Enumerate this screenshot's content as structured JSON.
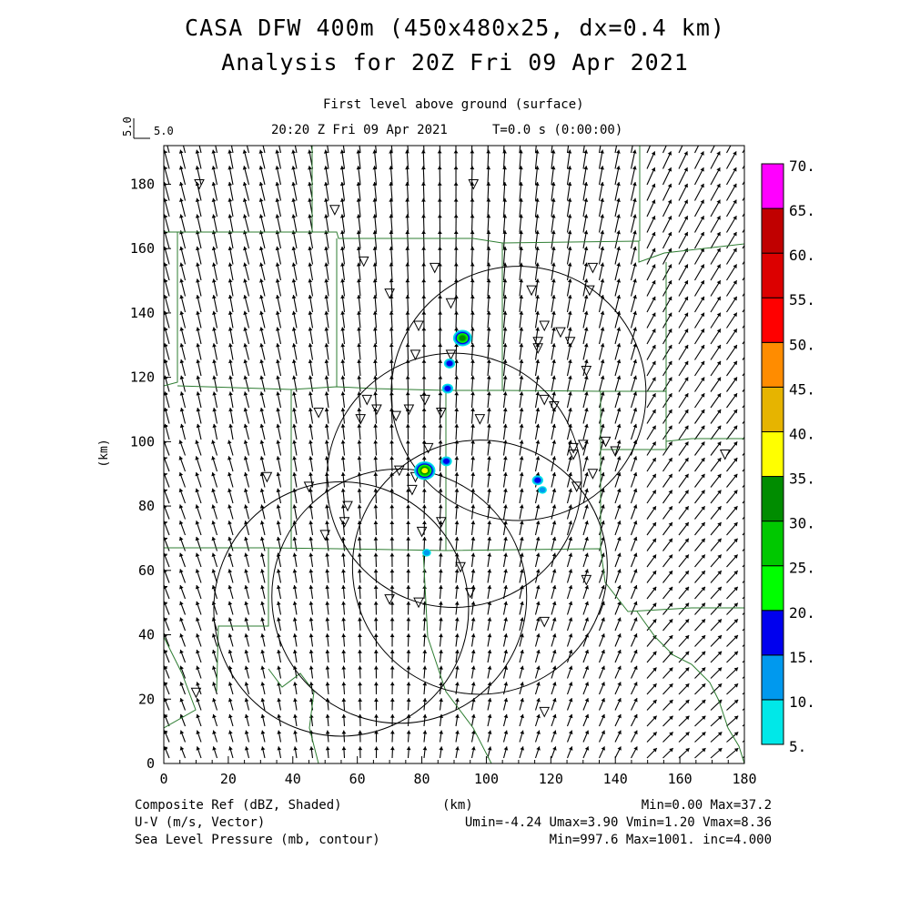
{
  "header": {
    "title": "CASA DFW 400m (450x480x25, dx=0.4 km)",
    "subtitle": "Analysis for 20Z Fri 09 Apr 2021",
    "level": "First level above ground (surface)",
    "valid_time": "20:20 Z Fri 09 Apr 2021",
    "time_step": "T=0.0 s (0:00:00)",
    "vector_scale_label": "5.0"
  },
  "footer": {
    "field1": "Composite Ref (dBZ, Shaded)",
    "field2": "U-V (m/s, Vector)",
    "field3": "Sea Level Pressure (mb, contour)",
    "xunit": "(km)",
    "stats1": "Min=0.00 Max=37.2",
    "stats2": "Umin=-4.24 Umax=3.90 Vmin=1.20 Vmax=8.36",
    "stats3": "Min=997.6 Max=1001. inc=4.000"
  },
  "chart_data": {
    "type": "heatmap",
    "xlabel": "(km)",
    "ylabel": "(km)",
    "xlim": [
      0,
      180
    ],
    "ylim": [
      0,
      192
    ],
    "xticks": [
      "0",
      "20",
      "40",
      "60",
      "80",
      "100",
      "120",
      "140",
      "160",
      "180"
    ],
    "yticks": [
      "0",
      "20",
      "40",
      "60",
      "80",
      "100",
      "120",
      "140",
      "160",
      "180"
    ],
    "colorbar": {
      "levels": [
        "5.",
        "10.",
        "15.",
        "20.",
        "25.",
        "30.",
        "35.",
        "40.",
        "45.",
        "50.",
        "55.",
        "60.",
        "65.",
        "70."
      ],
      "colors": [
        "#00e8e8",
        "#0099ee",
        "#0000ee",
        "#00ff00",
        "#00c800",
        "#008c00",
        "#ffff00",
        "#e6b400",
        "#ff8c00",
        "#ff0000",
        "#dc0000",
        "#c00000",
        "#ff00ff"
      ]
    },
    "reflectivity_cells": [
      {
        "x": 92.6,
        "y": 132.2,
        "dbz": 30
      },
      {
        "x": 88.6,
        "y": 124.3,
        "dbz": 15
      },
      {
        "x": 88.0,
        "y": 116.5,
        "dbz": 15
      },
      {
        "x": 80.9,
        "y": 91.0,
        "dbz": 35
      },
      {
        "x": 87.6,
        "y": 93.9,
        "dbz": 15
      },
      {
        "x": 115.9,
        "y": 88.0,
        "dbz": 15
      },
      {
        "x": 117.4,
        "y": 85.0,
        "dbz": 10
      },
      {
        "x": 81.5,
        "y": 65.5,
        "dbz": 10
      }
    ],
    "radar_circles": [
      {
        "x": 110,
        "y": 115,
        "r_km": 39.5
      },
      {
        "x": 90,
        "y": 88,
        "r_km": 39.5
      },
      {
        "x": 98,
        "y": 61,
        "r_km": 39.5
      },
      {
        "x": 73,
        "y": 52,
        "r_km": 39.5
      },
      {
        "x": 55,
        "y": 48,
        "r_km": 39.5
      }
    ],
    "stations": [
      [
        11,
        180
      ],
      [
        53,
        172
      ],
      [
        96,
        180
      ],
      [
        62,
        156
      ],
      [
        70,
        146
      ],
      [
        84,
        154
      ],
      [
        89,
        143
      ],
      [
        114,
        147
      ],
      [
        133,
        154
      ],
      [
        132,
        147
      ],
      [
        79,
        136
      ],
      [
        89,
        127
      ],
      [
        78,
        127
      ],
      [
        81,
        113
      ],
      [
        86,
        109
      ],
      [
        76,
        110
      ],
      [
        72,
        108
      ],
      [
        63,
        113
      ],
      [
        61,
        107
      ],
      [
        48,
        109
      ],
      [
        66,
        110
      ],
      [
        82,
        98
      ],
      [
        98,
        107
      ],
      [
        116,
        129
      ],
      [
        118,
        113
      ],
      [
        121,
        111
      ],
      [
        118,
        136
      ],
      [
        116,
        131
      ],
      [
        123,
        134
      ],
      [
        126,
        131
      ],
      [
        131,
        122
      ],
      [
        127,
        98
      ],
      [
        130,
        99
      ],
      [
        127,
        96
      ],
      [
        137,
        100
      ],
      [
        133,
        90
      ],
      [
        140,
        97
      ],
      [
        128,
        86
      ],
      [
        174,
        96
      ],
      [
        78,
        89
      ],
      [
        77,
        85
      ],
      [
        57,
        80
      ],
      [
        73,
        91
      ],
      [
        56,
        75
      ],
      [
        45,
        86
      ],
      [
        50,
        71
      ],
      [
        32,
        89
      ],
      [
        80,
        72
      ],
      [
        86,
        75
      ],
      [
        92,
        61
      ],
      [
        95,
        53
      ],
      [
        118,
        44
      ],
      [
        131,
        57
      ],
      [
        70,
        51
      ],
      [
        79,
        50
      ],
      [
        10,
        22
      ],
      [
        118,
        16
      ]
    ]
  }
}
